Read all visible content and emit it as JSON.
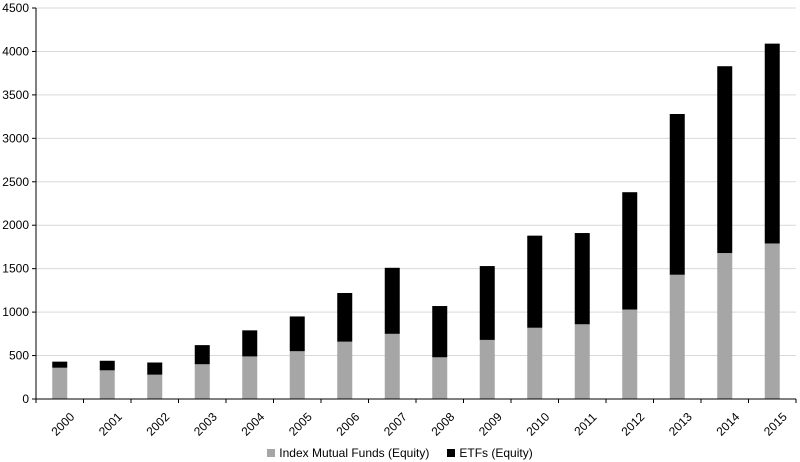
{
  "chart_data": {
    "type": "bar",
    "stacked": true,
    "categories": [
      "2000",
      "2001",
      "2002",
      "2003",
      "2004",
      "2005",
      "2006",
      "2007",
      "2008",
      "2009",
      "2010",
      "2011",
      "2012",
      "2013",
      "2014",
      "2015"
    ],
    "series": [
      {
        "name": "Index Mutual Funds (Equity)",
        "color": "#a6a6a6",
        "values": [
          360,
          330,
          280,
          400,
          490,
          550,
          660,
          750,
          480,
          680,
          820,
          860,
          1030,
          1430,
          1680,
          1790
        ]
      },
      {
        "name": "ETFs (Equity)",
        "color": "#000000",
        "values": [
          70,
          110,
          140,
          220,
          300,
          400,
          560,
          760,
          590,
          850,
          1060,
          1050,
          1350,
          1850,
          2150,
          2300
        ]
      }
    ],
    "y_ticks": [
      "0",
      "500",
      "1000",
      "1500",
      "2000",
      "2500",
      "3000",
      "3500",
      "4000",
      "4500"
    ],
    "ylim": [
      0,
      4500
    ],
    "grid": "horizontal",
    "legend_position": "bottom"
  }
}
